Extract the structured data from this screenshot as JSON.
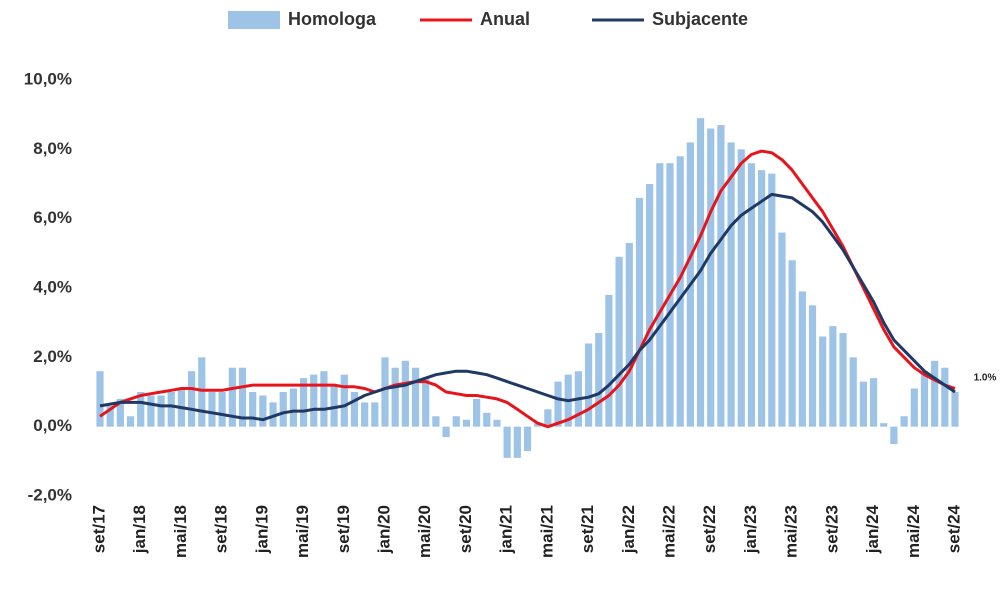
{
  "chart_data": {
    "type": "bar_line",
    "categories": [
      "set/17",
      null,
      null,
      null,
      "jan/18",
      null,
      null,
      null,
      "mai/18",
      null,
      null,
      null,
      "set/18",
      null,
      null,
      null,
      "jan/19",
      null,
      null,
      null,
      "mai/19",
      null,
      null,
      null,
      "set/19",
      null,
      null,
      null,
      "jan/20",
      null,
      null,
      null,
      "mai/20",
      null,
      null,
      null,
      "set/20",
      null,
      null,
      null,
      "jan/21",
      null,
      null,
      null,
      "mai/21",
      null,
      null,
      null,
      "set/21",
      null,
      null,
      null,
      "jan/22",
      null,
      null,
      null,
      "mai/22",
      null,
      null,
      null,
      "set/22",
      null,
      null,
      null,
      "jan/23",
      null,
      null,
      null,
      "mai/23",
      null,
      null,
      null,
      "set/23",
      null,
      null,
      null,
      "jan/24",
      null,
      null,
      null,
      "mai/24",
      null,
      null,
      null,
      "set/24"
    ],
    "series": [
      {
        "name": "Homologa",
        "kind": "bar",
        "color": "#9dc3e6",
        "values": [
          1.6,
          0.6,
          0.8,
          0.3,
          1.0,
          0.9,
          0.9,
          1.0,
          1.1,
          1.6,
          2.0,
          1.0,
          1.0,
          1.7,
          1.7,
          1.0,
          0.9,
          0.7,
          1.0,
          1.1,
          1.4,
          1.5,
          1.6,
          1.2,
          1.5,
          1.0,
          0.7,
          0.7,
          2.0,
          1.7,
          1.9,
          1.7,
          1.4,
          0.3,
          -0.3,
          0.3,
          0.2,
          0.8,
          0.4,
          0.2,
          -0.9,
          -0.9,
          -0.7,
          0.1,
          0.5,
          1.3,
          1.5,
          1.6,
          2.4,
          2.7,
          3.8,
          4.9,
          5.3,
          6.6,
          7.0,
          7.6,
          7.6,
          7.8,
          8.2,
          8.9,
          8.6,
          8.7,
          8.2,
          8.0,
          7.6,
          7.4,
          7.3,
          5.6,
          4.8,
          3.9,
          3.5,
          2.6,
          2.9,
          2.7,
          2.0,
          1.3,
          1.4,
          0.1,
          -0.5,
          0.3,
          1.1,
          1.6,
          1.9,
          1.7,
          1.0
        ]
      },
      {
        "name": "Anual",
        "kind": "line",
        "color": "#e8141b",
        "values": [
          0.3,
          0.5,
          0.7,
          0.8,
          0.9,
          0.95,
          1.0,
          1.05,
          1.1,
          1.1,
          1.05,
          1.05,
          1.05,
          1.1,
          1.15,
          1.2,
          1.2,
          1.2,
          1.2,
          1.2,
          1.2,
          1.2,
          1.2,
          1.2,
          1.15,
          1.15,
          1.1,
          1.0,
          1.1,
          1.2,
          1.25,
          1.3,
          1.3,
          1.2,
          1.0,
          0.95,
          0.9,
          0.9,
          0.85,
          0.8,
          0.7,
          0.5,
          0.3,
          0.1,
          0.0,
          0.1,
          0.2,
          0.35,
          0.5,
          0.7,
          0.9,
          1.2,
          1.6,
          2.2,
          2.8,
          3.3,
          3.8,
          4.3,
          4.9,
          5.5,
          6.2,
          6.8,
          7.2,
          7.6,
          7.85,
          7.95,
          7.9,
          7.7,
          7.4,
          7.0,
          6.6,
          6.2,
          5.7,
          5.2,
          4.6,
          4.0,
          3.4,
          2.8,
          2.3,
          2.0,
          1.7,
          1.5,
          1.35,
          1.2,
          1.1
        ]
      },
      {
        "name": "Subjacente",
        "kind": "line",
        "color": "#1f3864",
        "values": [
          0.6,
          0.65,
          0.7,
          0.7,
          0.7,
          0.65,
          0.6,
          0.6,
          0.55,
          0.5,
          0.45,
          0.4,
          0.35,
          0.3,
          0.25,
          0.25,
          0.2,
          0.3,
          0.4,
          0.45,
          0.45,
          0.5,
          0.5,
          0.55,
          0.6,
          0.75,
          0.9,
          1.0,
          1.1,
          1.15,
          1.2,
          1.3,
          1.4,
          1.5,
          1.55,
          1.6,
          1.6,
          1.55,
          1.5,
          1.4,
          1.3,
          1.2,
          1.1,
          1.0,
          0.9,
          0.8,
          0.75,
          0.8,
          0.85,
          0.95,
          1.2,
          1.5,
          1.8,
          2.2,
          2.5,
          2.9,
          3.3,
          3.7,
          4.1,
          4.5,
          5.0,
          5.4,
          5.8,
          6.1,
          6.3,
          6.5,
          6.7,
          6.65,
          6.6,
          6.4,
          6.2,
          5.9,
          5.5,
          5.1,
          4.6,
          4.1,
          3.6,
          3.0,
          2.5,
          2.2,
          1.9,
          1.6,
          1.4,
          1.2,
          1.0
        ]
      }
    ],
    "ylim": [
      -2,
      10
    ],
    "yticks": [
      {
        "value": -2,
        "label": "-2,0%"
      },
      {
        "value": 0,
        "label": "0,0%"
      },
      {
        "value": 2,
        "label": "2,0%"
      },
      {
        "value": 4,
        "label": "4,0%"
      },
      {
        "value": 6,
        "label": "6,0%"
      },
      {
        "value": 8,
        "label": "8,0%"
      },
      {
        "value": 10,
        "label": "10,0%"
      }
    ],
    "annotation": "1.0%"
  }
}
